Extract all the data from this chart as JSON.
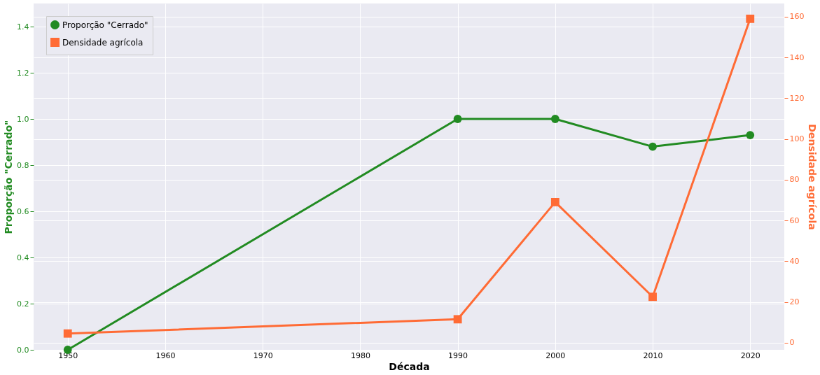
{
  "chart_data": {
    "type": "line",
    "xlabel": "Década",
    "ylabel": "Proporção \"Cerrado\"",
    "y2label": "Densidade agrícola",
    "x": [
      1950,
      1990,
      2000,
      2010,
      2020
    ],
    "series": [
      {
        "name": "Proporção \"Cerrado\"",
        "color": "#228b22",
        "values": [
          0,
          1.0,
          1.0,
          0.88,
          0.93
        ],
        "marker": "circle"
      },
      {
        "name": "Densidade agrícola",
        "color": "#ff6b35",
        "values": [
          4.5,
          11.5,
          69,
          22.5,
          159
        ],
        "marker": "square",
        "axis": "y2"
      }
    ],
    "xlim": [
      1946.5,
      2023.5
    ],
    "xticks": [
      1950,
      1960,
      1970,
      1980,
      1990,
      2000,
      2010,
      2020
    ],
    "ylim": [
      0,
      1.5
    ],
    "yticks": [
      {
        "value": 0,
        "label": "0.0"
      },
      0.2,
      0.4,
      0.6,
      0.8,
      {
        "value": 1,
        "label": "1.0"
      },
      1.2,
      1.4
    ],
    "y2lim": [
      -3.5,
      166.5
    ],
    "y2ticks": [
      0,
      20,
      40,
      60,
      80,
      100,
      120,
      140,
      160
    ],
    "grid": true,
    "legend": "top left",
    "line_style": "solid"
  }
}
